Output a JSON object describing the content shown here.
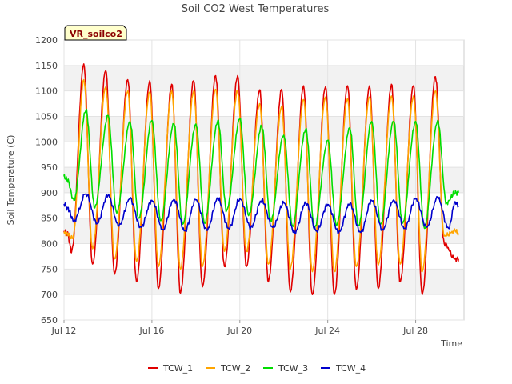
{
  "chart_data": {
    "type": "line",
    "title": "Soil CO2 West Temperatures",
    "xlabel": "Time",
    "ylabel": "Soil Temperature (C)",
    "badge": "VR_soilco2",
    "ylim": [
      650,
      1200
    ],
    "yticks": [
      650,
      700,
      750,
      800,
      850,
      900,
      950,
      1000,
      1050,
      1100,
      1150,
      1200
    ],
    "xlim_days": [
      12,
      30.2
    ],
    "xticks": [
      {
        "day": 12,
        "label": "Jul 12"
      },
      {
        "day": 16,
        "label": "Jul 16"
      },
      {
        "day": 20,
        "label": "Jul 20"
      },
      {
        "day": 24,
        "label": "Jul 24"
      },
      {
        "day": 28,
        "label": "Jul 28"
      }
    ],
    "grid": true,
    "legend_position": "bottom",
    "series": [
      {
        "name": "TCW_1",
        "color": "#e00000",
        "x": [
          12.0,
          12.15,
          12.35,
          12.9,
          13.3,
          13.9,
          14.3,
          14.9,
          15.3,
          15.9,
          16.3,
          16.9,
          17.3,
          17.9,
          18.3,
          18.9,
          19.3,
          19.9,
          20.3,
          20.9,
          21.3,
          21.9,
          22.3,
          22.9,
          23.3,
          23.9,
          24.3,
          24.9,
          25.3,
          25.9,
          26.3,
          26.9,
          27.3,
          27.9,
          28.3,
          28.9,
          29.3,
          29.8,
          29.95
        ],
        "y": [
          825,
          820,
          785,
          1153,
          760,
          1140,
          740,
          1122,
          725,
          1120,
          712,
          1113,
          703,
          1120,
          715,
          1130,
          755,
          1130,
          755,
          1102,
          725,
          1103,
          705,
          1110,
          700,
          1108,
          700,
          1110,
          710,
          1110,
          712,
          1113,
          725,
          1110,
          700,
          1128,
          800,
          770,
          770
        ]
      },
      {
        "name": "TCW_2",
        "color": "#ffa500",
        "x": [
          12.0,
          12.15,
          12.4,
          12.9,
          13.3,
          13.9,
          14.3,
          14.9,
          15.3,
          15.9,
          16.3,
          16.9,
          17.3,
          17.9,
          18.3,
          18.9,
          19.3,
          19.9,
          20.3,
          20.9,
          21.3,
          21.9,
          22.3,
          22.9,
          23.3,
          23.9,
          24.3,
          24.9,
          25.3,
          25.9,
          26.3,
          26.9,
          27.3,
          27.9,
          28.3,
          28.9,
          29.3,
          29.8,
          29.95
        ],
        "y": [
          820,
          820,
          810,
          1122,
          790,
          1108,
          770,
          1100,
          765,
          1098,
          755,
          1100,
          750,
          1100,
          755,
          1103,
          785,
          1100,
          785,
          1075,
          760,
          1070,
          750,
          1083,
          745,
          1088,
          745,
          1085,
          755,
          1088,
          758,
          1090,
          760,
          1090,
          745,
          1100,
          815,
          825,
          820
        ]
      },
      {
        "name": "TCW_3",
        "color": "#00dd00",
        "x": [
          12.0,
          12.15,
          12.45,
          13.0,
          13.4,
          14.0,
          14.4,
          15.0,
          15.4,
          16.0,
          16.4,
          17.0,
          17.4,
          18.0,
          18.4,
          19.0,
          19.4,
          20.0,
          20.4,
          21.0,
          21.4,
          22.0,
          22.4,
          23.0,
          23.4,
          24.0,
          24.4,
          25.0,
          25.4,
          26.0,
          26.4,
          27.0,
          27.4,
          28.0,
          28.4,
          29.0,
          29.4,
          29.8,
          29.95
        ],
        "y": [
          932,
          925,
          885,
          1062,
          870,
          1052,
          860,
          1040,
          850,
          1042,
          845,
          1035,
          838,
          1035,
          840,
          1042,
          865,
          1045,
          855,
          1030,
          845,
          1013,
          835,
          1025,
          830,
          1003,
          835,
          1028,
          835,
          1040,
          838,
          1040,
          840,
          1040,
          830,
          1042,
          880,
          900,
          900
        ]
      },
      {
        "name": "TCW_4",
        "color": "#0000cc",
        "x": [
          12.0,
          12.15,
          12.45,
          13.0,
          13.5,
          14.0,
          14.5,
          15.0,
          15.5,
          16.0,
          16.5,
          17.0,
          17.5,
          18.0,
          18.5,
          19.0,
          19.5,
          20.0,
          20.5,
          21.0,
          21.5,
          22.0,
          22.5,
          23.0,
          23.5,
          24.0,
          24.5,
          25.0,
          25.5,
          26.0,
          26.5,
          27.0,
          27.5,
          28.0,
          28.5,
          29.0,
          29.5,
          29.8,
          29.95
        ],
        "y": [
          878,
          870,
          845,
          898,
          840,
          895,
          835,
          888,
          832,
          885,
          828,
          887,
          825,
          886,
          826,
          888,
          830,
          888,
          832,
          885,
          832,
          880,
          822,
          880,
          825,
          877,
          822,
          878,
          822,
          885,
          828,
          886,
          830,
          888,
          832,
          890,
          830,
          882,
          874
        ]
      }
    ]
  }
}
